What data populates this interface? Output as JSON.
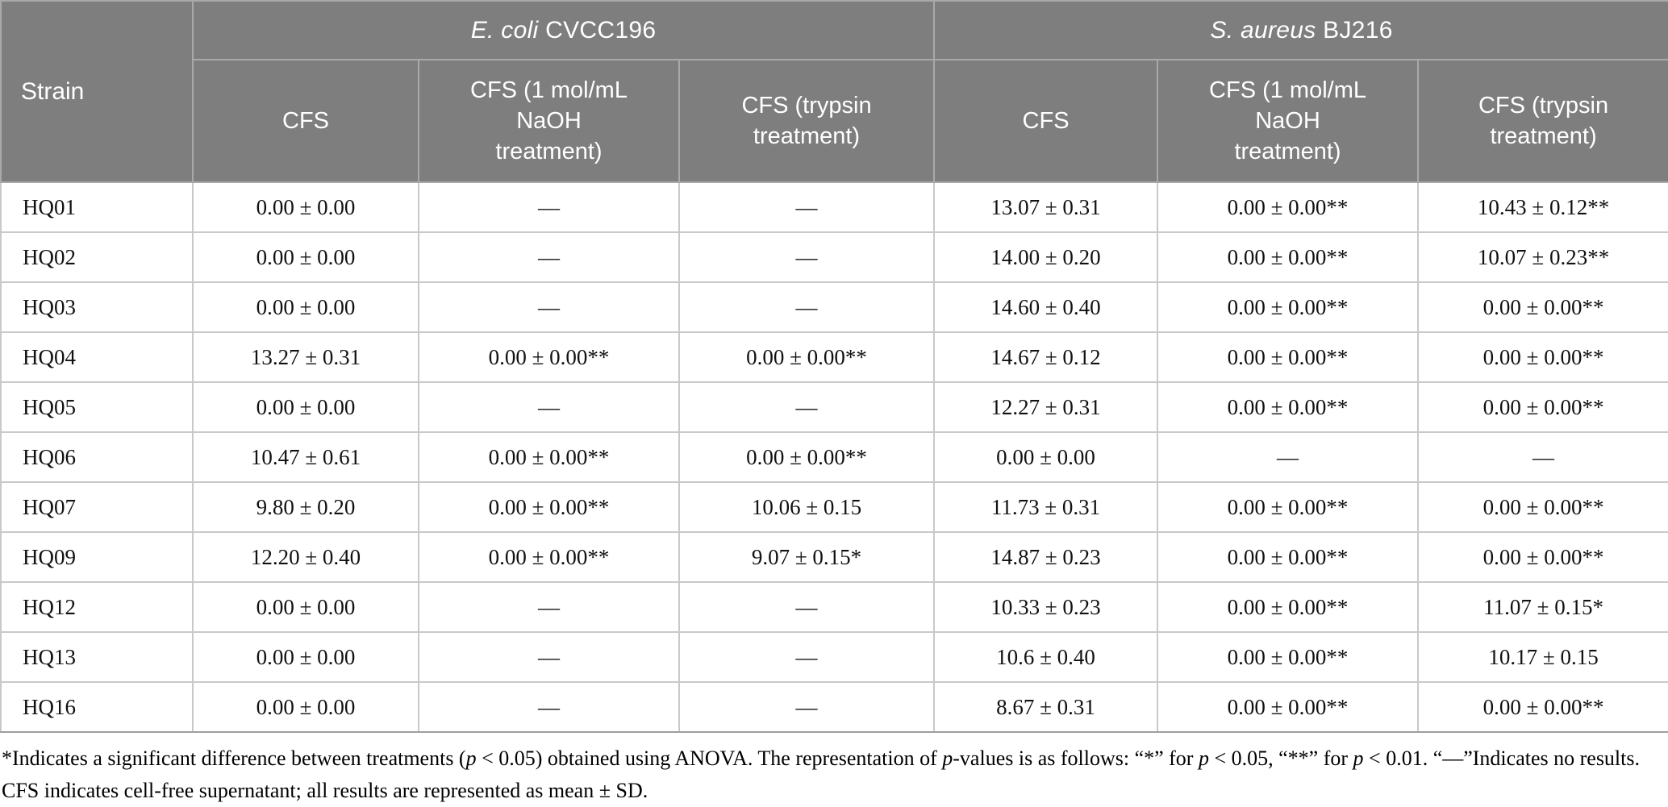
{
  "table": {
    "corner_label": "Strain",
    "groups": [
      {
        "id": "ecoli-cvcc196",
        "parts": [
          {
            "text": "E. coli",
            "italic": true
          },
          {
            "text": " CVCC196",
            "italic": false
          }
        ]
      },
      {
        "id": "saureus-bj216",
        "parts": [
          {
            "text": "S. aureus",
            "italic": true
          },
          {
            "text": " BJ216",
            "italic": false
          }
        ]
      }
    ],
    "sub_headers": [
      {
        "lines": [
          "CFS"
        ]
      },
      {
        "lines": [
          "CFS (1 mol/mL",
          "NaOH",
          "treatment)"
        ]
      },
      {
        "lines": [
          "CFS (trypsin",
          "treatment)"
        ]
      },
      {
        "lines": [
          "CFS"
        ]
      },
      {
        "lines": [
          "CFS (1 mol/mL",
          "NaOH",
          "treatment)"
        ]
      },
      {
        "lines": [
          "CFS (trypsin",
          "treatment)"
        ]
      }
    ],
    "rows": [
      {
        "strain": "HQ01",
        "values": [
          "0.00 ± 0.00",
          "—",
          "—",
          "13.07 ± 0.31",
          "0.00 ± 0.00**",
          "10.43 ± 0.12**"
        ]
      },
      {
        "strain": "HQ02",
        "values": [
          "0.00 ± 0.00",
          "—",
          "—",
          "14.00 ± 0.20",
          "0.00 ± 0.00**",
          "10.07 ± 0.23**"
        ]
      },
      {
        "strain": "HQ03",
        "values": [
          "0.00 ± 0.00",
          "—",
          "—",
          "14.60 ± 0.40",
          "0.00 ± 0.00**",
          "0.00 ± 0.00**"
        ]
      },
      {
        "strain": "HQ04",
        "values": [
          "13.27 ± 0.31",
          "0.00 ± 0.00**",
          "0.00 ± 0.00**",
          "14.67 ± 0.12",
          "0.00 ± 0.00**",
          "0.00 ± 0.00**"
        ]
      },
      {
        "strain": "HQ05",
        "values": [
          "0.00 ± 0.00",
          "—",
          "—",
          "12.27 ± 0.31",
          "0.00 ± 0.00**",
          "0.00 ± 0.00**"
        ]
      },
      {
        "strain": "HQ06",
        "values": [
          "10.47 ± 0.61",
          "0.00 ± 0.00**",
          "0.00 ± 0.00**",
          "0.00 ± 0.00",
          "—",
          "—"
        ]
      },
      {
        "strain": "HQ07",
        "values": [
          "9.80 ± 0.20",
          "0.00 ± 0.00**",
          "10.06 ± 0.15",
          "11.73 ± 0.31",
          "0.00 ± 0.00**",
          "0.00 ± 0.00**"
        ]
      },
      {
        "strain": "HQ09",
        "values": [
          "12.20 ± 0.40",
          "0.00 ± 0.00**",
          "9.07 ± 0.15*",
          "14.87 ± 0.23",
          "0.00 ± 0.00**",
          "0.00 ± 0.00**"
        ]
      },
      {
        "strain": "HQ12",
        "values": [
          "0.00 ± 0.00",
          "—",
          "—",
          "10.33 ± 0.23",
          "0.00 ± 0.00**",
          "11.07 ± 0.15*"
        ]
      },
      {
        "strain": "HQ13",
        "values": [
          "0.00 ± 0.00",
          "—",
          "—",
          "10.6 ± 0.40",
          "0.00 ± 0.00**",
          "10.17 ± 0.15"
        ]
      },
      {
        "strain": "HQ16",
        "values": [
          "0.00 ± 0.00",
          "—",
          "—",
          "8.67 ± 0.31",
          "0.00 ± 0.00**",
          "0.00 ± 0.00**"
        ]
      }
    ]
  },
  "footnote": {
    "parts": [
      {
        "text": "*Indicates a significant difference between treatments (",
        "italic": false
      },
      {
        "text": "p",
        "italic": true
      },
      {
        "text": " < 0.05) obtained using ANOVA. The representation of ",
        "italic": false
      },
      {
        "text": "p",
        "italic": true
      },
      {
        "text": "-values is as follows: “*” for ",
        "italic": false
      },
      {
        "text": "p",
        "italic": true
      },
      {
        "text": " < 0.05, “**” for ",
        "italic": false
      },
      {
        "text": "p",
        "italic": true
      },
      {
        "text": " < 0.01. “—”Indicates no results. CFS indicates cell-free supernatant; all results are represented as mean ± SD.",
        "italic": false
      }
    ]
  },
  "colors": {
    "header_bg": "#7e7e7e",
    "header_text": "#ffffff",
    "header_border": "#a9a9a9",
    "grid_border": "#c9c9c9",
    "table_bottom_border": "#9e9e9e",
    "body_text": "#111111"
  }
}
